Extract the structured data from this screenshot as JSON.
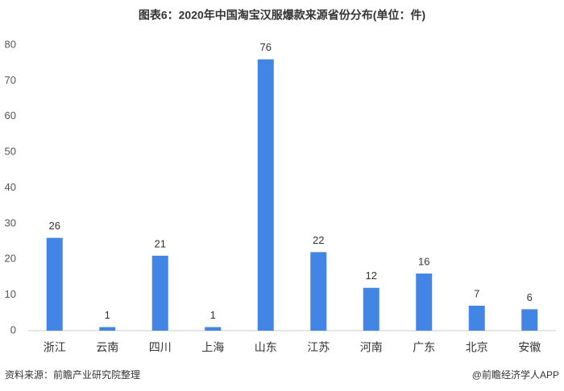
{
  "chart_data": {
    "type": "bar",
    "title": "图表6：2020年中国淘宝汉服爆款来源省份分布(单位：件)",
    "categories": [
      "浙江",
      "云南",
      "四川",
      "上海",
      "山东",
      "江苏",
      "河南",
      "广东",
      "北京",
      "安徽"
    ],
    "values": [
      26,
      1,
      21,
      1,
      76,
      22,
      12,
      16,
      7,
      6
    ],
    "color": "#4285e4",
    "ylim": [
      0,
      80
    ],
    "yticks": [
      0,
      10,
      20,
      30,
      40,
      50,
      60,
      70,
      80
    ],
    "grid": false,
    "source": "资料来源：前瞻产业研究院整理",
    "credit": "@前瞻经济学人APP"
  }
}
